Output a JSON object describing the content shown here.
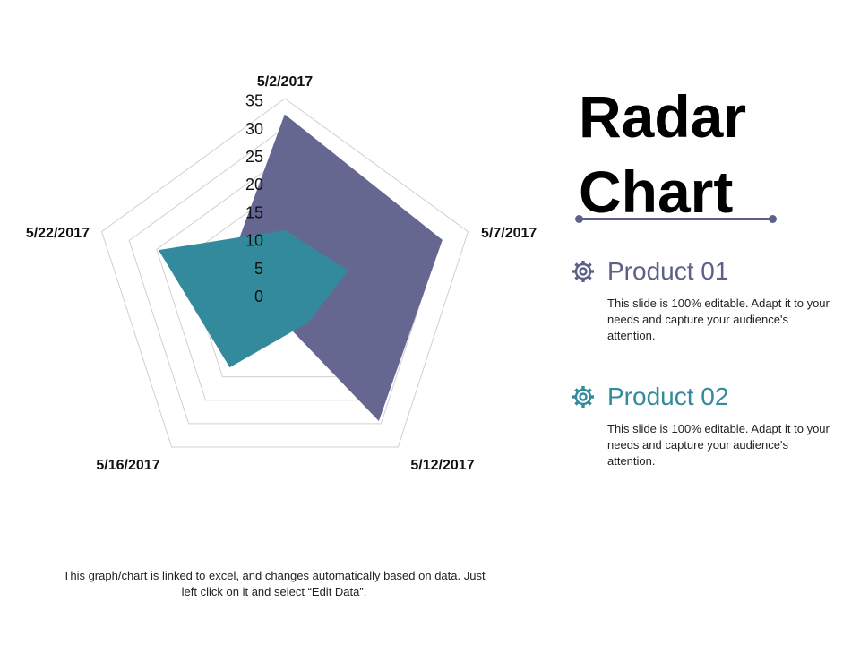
{
  "title": "Radar Chart",
  "title_lines": [
    "Radar",
    "Chart"
  ],
  "colors": {
    "product1": "#656791",
    "product2": "#338a9c",
    "accent": "#5d6189",
    "grid": "#d0d0d0"
  },
  "products": [
    {
      "name": "Product 01",
      "icon": "gear-icon",
      "color": "#5d6189",
      "description": "This slide is 100% editable. Adapt it to your needs and capture your audience's attention."
    },
    {
      "name": "Product 02",
      "icon": "gear-icon",
      "color": "#338a9c",
      "description": "This slide is 100% editable. Adapt it to your needs and capture your audience's attention."
    }
  ],
  "footnote": "This graph/chart is linked to excel, and changes automatically based on data. Just left click on it and select “Edit Data”.",
  "chart_data": {
    "type": "radar",
    "categories": [
      "5/2/2017",
      "5/7/2017",
      "5/12/2017",
      "5/16/2017",
      "5/22/2017"
    ],
    "ticks": [
      0,
      5,
      10,
      15,
      20,
      25,
      30,
      35
    ],
    "rlim": [
      0,
      35
    ],
    "grid": true,
    "series": [
      {
        "name": "Product 01",
        "values": [
          32,
          30,
          29,
          4,
          11
        ],
        "color": "#656791"
      },
      {
        "name": "Product 02",
        "values": [
          11,
          12,
          7,
          17,
          24
        ],
        "color": "#338a9c"
      }
    ]
  }
}
